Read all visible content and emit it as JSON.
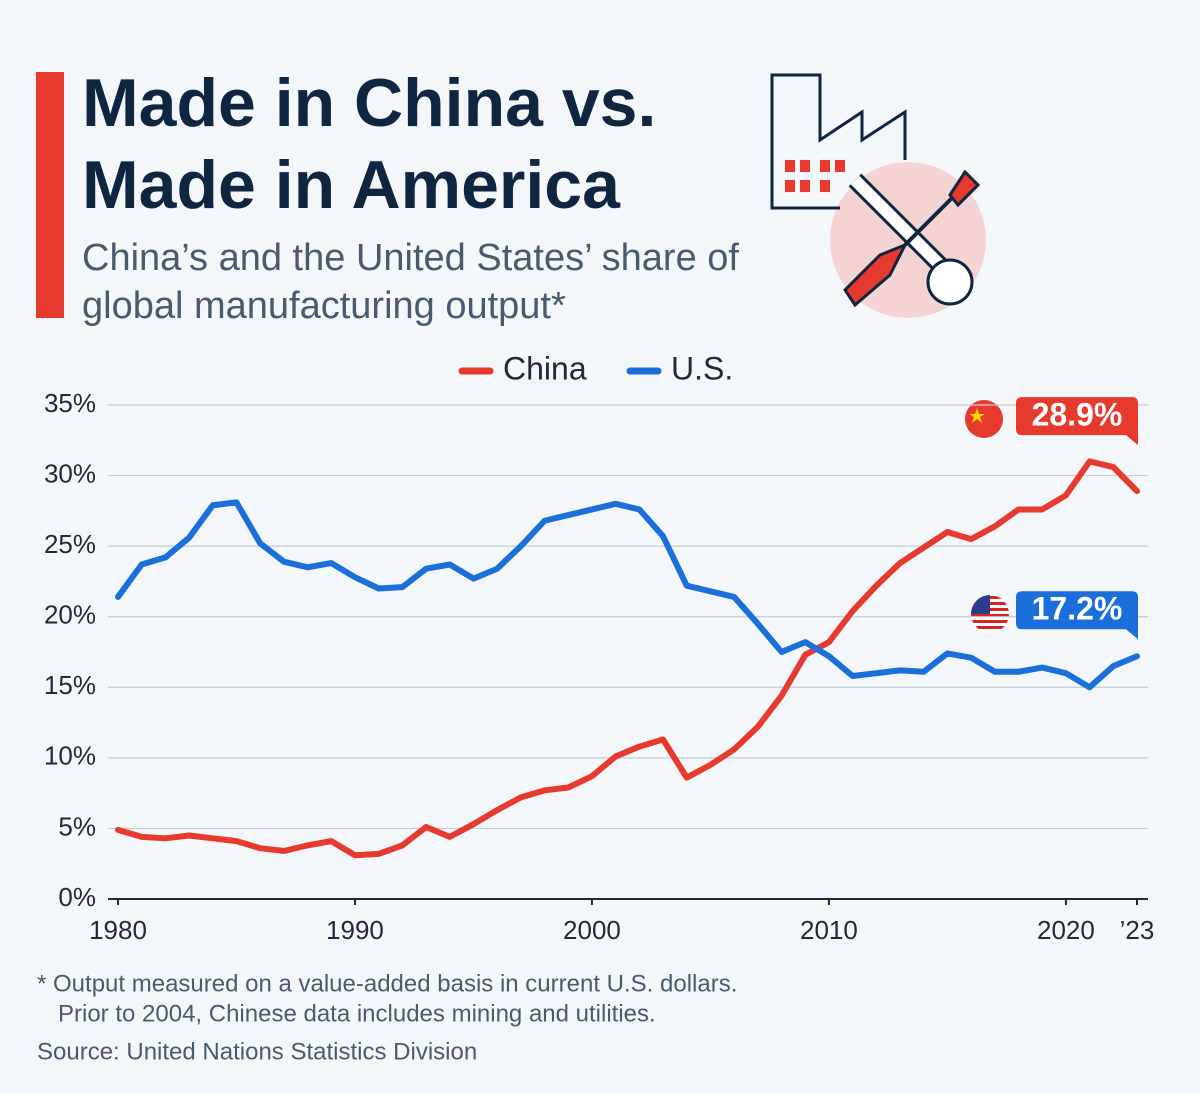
{
  "chart_data": {
    "type": "line",
    "title": "Made in China vs. Made in America",
    "subtitle": "China’s and the United States’ share of global manufacturing output*",
    "notes": [
      "* Output measured on a value-added basis in current U.S. dollars.",
      "Prior to 2004, Chinese data includes mining and utilities."
    ],
    "source": "Source: United Nations Statistics Division",
    "x": [
      1980,
      1981,
      1982,
      1983,
      1984,
      1985,
      1986,
      1987,
      1988,
      1989,
      1990,
      1991,
      1992,
      1993,
      1994,
      1995,
      1996,
      1997,
      1998,
      1999,
      2000,
      2001,
      2002,
      2003,
      2004,
      2005,
      2006,
      2007,
      2008,
      2009,
      2010,
      2011,
      2012,
      2013,
      2014,
      2015,
      2016,
      2017,
      2018,
      2019,
      2020,
      2021,
      2022,
      2023
    ],
    "series": [
      {
        "name": "China",
        "color": "#e63a2e",
        "values": [
          4.9,
          4.4,
          4.3,
          4.5,
          4.3,
          4.1,
          3.6,
          3.4,
          3.8,
          4.1,
          3.1,
          3.2,
          3.8,
          5.1,
          4.4,
          5.3,
          6.3,
          7.2,
          7.7,
          7.9,
          8.7,
          10.1,
          10.8,
          11.3,
          8.6,
          9.5,
          10.6,
          12.2,
          14.4,
          17.3,
          18.2,
          20.4,
          22.2,
          23.8,
          24.9,
          26.0,
          25.5,
          26.4,
          27.6,
          27.6,
          28.6,
          31.0,
          30.6,
          28.9
        ],
        "value_labels": [
          null,
          null,
          null,
          null,
          null,
          null,
          null,
          null,
          null,
          null,
          null,
          null,
          null,
          null,
          null,
          null,
          null,
          null,
          null,
          null,
          null,
          null,
          null,
          null,
          null,
          null,
          null,
          null,
          null,
          null,
          null,
          null,
          null,
          null,
          null,
          null,
          null,
          null,
          null,
          null,
          null,
          null,
          null,
          "28.9%"
        ]
      },
      {
        "name": "U.S.",
        "color": "#1a6fdb",
        "values": [
          21.4,
          23.7,
          24.2,
          25.6,
          27.9,
          28.1,
          25.2,
          23.9,
          23.5,
          23.8,
          22.8,
          22.0,
          22.1,
          23.4,
          23.7,
          22.7,
          23.4,
          25.0,
          26.8,
          27.2,
          27.6,
          28.0,
          27.6,
          25.7,
          22.2,
          21.8,
          21.4,
          19.5,
          17.5,
          18.2,
          17.2,
          15.8,
          16.0,
          16.2,
          16.1,
          17.4,
          17.1,
          16.1,
          16.1,
          16.4,
          16.0,
          15.0,
          16.5,
          17.2
        ],
        "value_labels": [
          null,
          null,
          null,
          null,
          null,
          null,
          null,
          null,
          null,
          null,
          null,
          null,
          null,
          null,
          null,
          null,
          null,
          null,
          null,
          null,
          null,
          null,
          null,
          null,
          null,
          null,
          null,
          null,
          null,
          null,
          null,
          null,
          null,
          null,
          null,
          null,
          null,
          null,
          null,
          null,
          null,
          null,
          null,
          "17.2%"
        ]
      }
    ],
    "xlim": [
      1980,
      2023
    ],
    "xticks": [
      1980,
      1990,
      2000,
      2010,
      2020,
      {
        "value": 2023,
        "label": "’23"
      }
    ],
    "ylim": [
      0,
      35
    ],
    "yticks": [
      {
        "value": 0,
        "label": "0%"
      },
      {
        "value": 5,
        "label": "5%"
      },
      {
        "value": 10,
        "label": "10%"
      },
      {
        "value": 15,
        "label": "15%"
      },
      {
        "value": 20,
        "label": "20%"
      },
      {
        "value": 25,
        "label": "25%"
      },
      {
        "value": 30,
        "label": "30%"
      },
      {
        "value": 35,
        "label": "35%"
      }
    ],
    "grid": true,
    "legend": "top"
  }
}
